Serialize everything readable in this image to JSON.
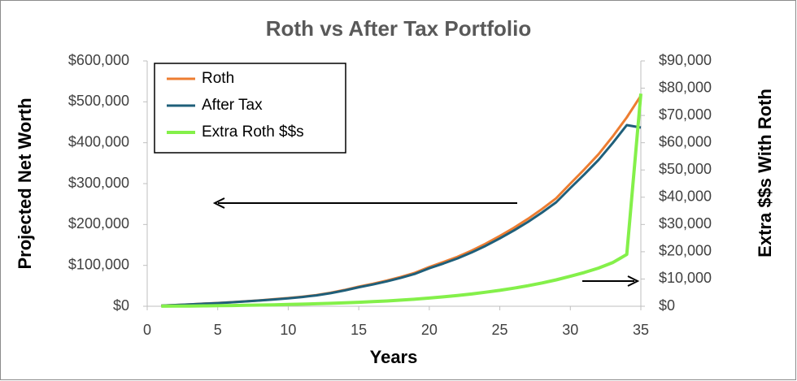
{
  "chart_data": {
    "type": "line",
    "title": "Roth vs After Tax Portfolio",
    "x_label": "Years",
    "y_label": "Projected Net Worth",
    "y2_label": "Extra $$s With Roth",
    "x": [
      1,
      2,
      3,
      4,
      5,
      6,
      7,
      8,
      9,
      10,
      11,
      12,
      13,
      14,
      15,
      16,
      17,
      18,
      19,
      20,
      21,
      22,
      23,
      24,
      25,
      26,
      27,
      28,
      29,
      30,
      31,
      32,
      33,
      34,
      35
    ],
    "xlim": [
      0,
      35
    ],
    "xticks": [
      0,
      5,
      10,
      15,
      20,
      25,
      30,
      35
    ],
    "ylim": [
      0,
      600000
    ],
    "yticks": [
      {
        "value": 0,
        "label": "$0"
      },
      {
        "value": 100000,
        "label": "$100,000"
      },
      {
        "value": 200000,
        "label": "$200,000"
      },
      {
        "value": 300000,
        "label": "$300,000"
      },
      {
        "value": 400000,
        "label": "$400,000"
      },
      {
        "value": 500000,
        "label": "$500,000"
      },
      {
        "value": 600000,
        "label": "$600,000"
      }
    ],
    "y2lim": [
      0,
      90000
    ],
    "y2ticks": [
      {
        "value": 0,
        "label": "$0"
      },
      {
        "value": 10000,
        "label": "$10,000"
      },
      {
        "value": 20000,
        "label": "$20,000"
      },
      {
        "value": 30000,
        "label": "$30,000"
      },
      {
        "value": 40000,
        "label": "$40,000"
      },
      {
        "value": 50000,
        "label": "$50,000"
      },
      {
        "value": 60000,
        "label": "$60,000"
      },
      {
        "value": 70000,
        "label": "$70,000"
      },
      {
        "value": 80000,
        "label": "$80,000"
      },
      {
        "value": 90000,
        "label": "$90,000"
      }
    ],
    "legend_position": "upper left",
    "series": [
      {
        "name": "Roth",
        "color": "#ed7d31",
        "values": [
          1500,
          3000,
          4600,
          6300,
          8000,
          10000,
          12200,
          14600,
          17200,
          20000,
          23500,
          27500,
          33000,
          40000,
          48000,
          55000,
          63000,
          72000,
          82000,
          96000,
          108000,
          121000,
          136000,
          153000,
          172000,
          192000,
          214000,
          238000,
          264000,
          300000,
          335000,
          372000,
          415000,
          462000,
          515000
        ]
      },
      {
        "name": "After Tax",
        "color": "#1f5f7a",
        "values": [
          1480,
          2950,
          4510,
          6160,
          7800,
          9730,
          11850,
          14160,
          16660,
          19350,
          22720,
          26580,
          31920,
          38740,
          46540,
          53300,
          61050,
          69750,
          79400,
          93000,
          104550,
          117050,
          131500,
          147850,
          166150,
          185350,
          206450,
          229450,
          254300,
          289000,
          322600,
          358000,
          399000,
          443000,
          437000
        ]
      },
      {
        "name": "Extra Roth $$s",
        "color": "#84f04a",
        "axis": "y2",
        "values": [
          20,
          50,
          90,
          140,
          200,
          270,
          350,
          440,
          540,
          650,
          780,
          920,
          1080,
          1260,
          1460,
          1700,
          1950,
          2250,
          2600,
          3000,
          3450,
          3950,
          4500,
          5150,
          5850,
          6650,
          7550,
          8550,
          9700,
          11000,
          12400,
          14000,
          16000,
          19000,
          78000
        ]
      }
    ]
  }
}
